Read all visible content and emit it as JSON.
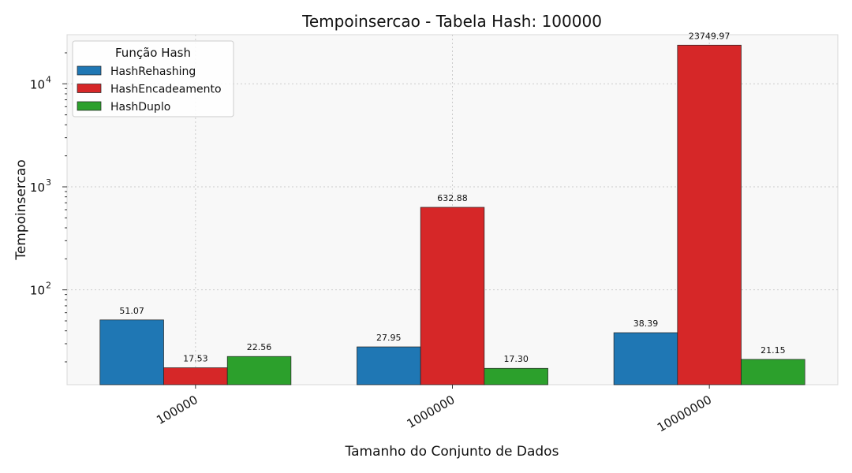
{
  "chart_data": {
    "type": "bar",
    "title": "Tempoinsercao - Tabela Hash: 100000",
    "xlabel": "Tamanho do Conjunto de Dados",
    "ylabel": "Tempoinsercao",
    "y_scale": "log",
    "ylim": [
      12,
      30000
    ],
    "grid": true,
    "legend_position": "top-left",
    "legend_title": "Função Hash",
    "categories": [
      "100000",
      "1000000",
      "10000000"
    ],
    "series": [
      {
        "name": "HashRehashing",
        "color": "#1f77b4",
        "values": [
          51.07,
          27.95,
          38.39
        ],
        "labels": [
          "51.07",
          "27.95",
          "38.39"
        ]
      },
      {
        "name": "HashEncadeamento",
        "color": "#d62728",
        "values": [
          17.53,
          632.88,
          23749.97
        ],
        "labels": [
          "17.53",
          "632.88",
          "23749.97"
        ]
      },
      {
        "name": "HashDuplo",
        "color": "#2ca02c",
        "values": [
          22.56,
          17.3,
          21.15
        ],
        "labels": [
          "22.56",
          "17.30",
          "21.15"
        ]
      }
    ],
    "y_ticks": [
      {
        "base": "10",
        "exp": "2",
        "value": 100
      },
      {
        "base": "10",
        "exp": "3",
        "value": 1000
      },
      {
        "base": "10",
        "exp": "4",
        "value": 10000
      }
    ]
  }
}
